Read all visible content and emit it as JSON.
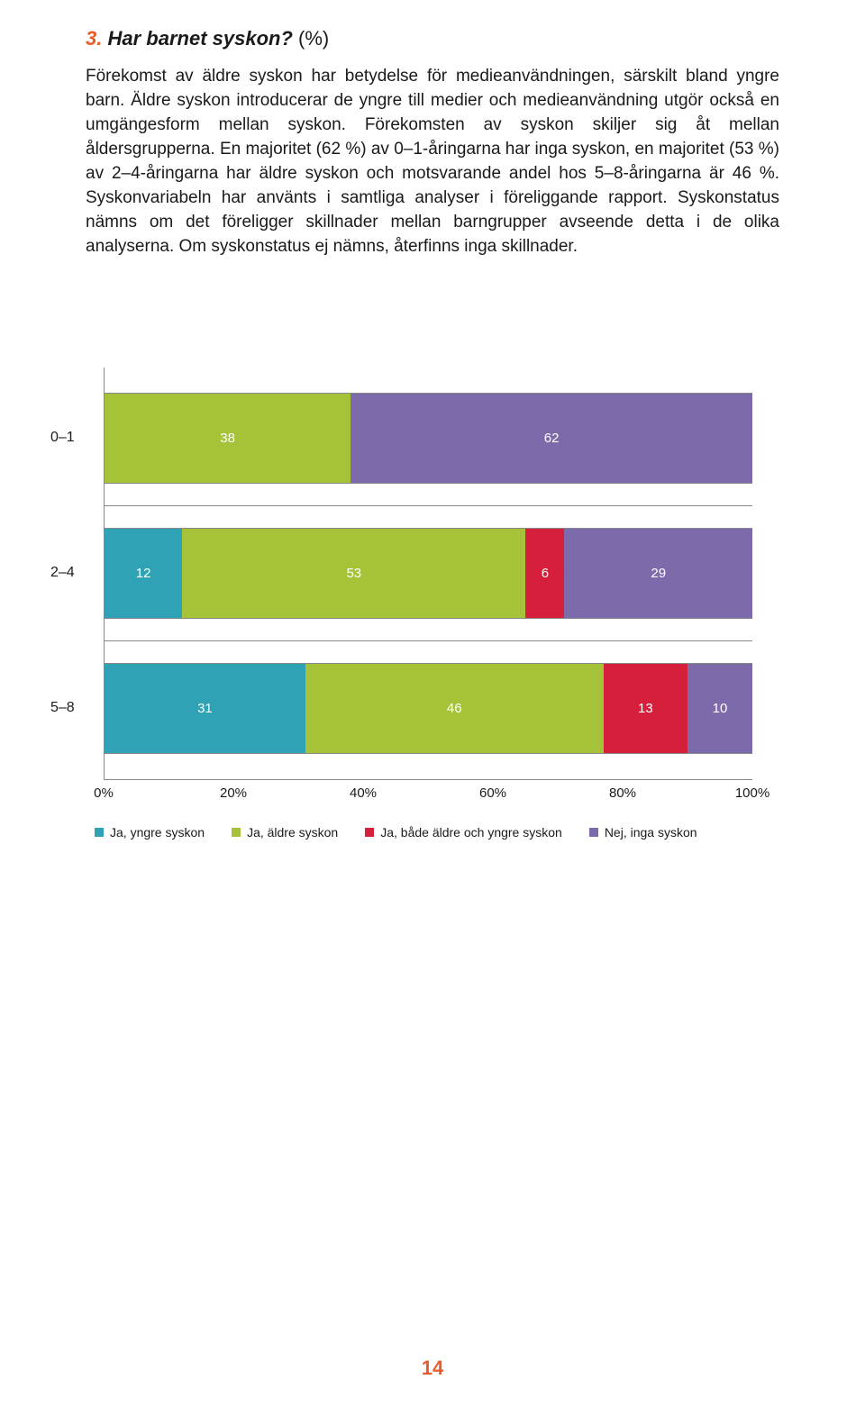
{
  "heading": {
    "number": "3.",
    "title": "Har barnet syskon?",
    "pct": "(%)"
  },
  "paragraph": "Förekomst av äldre syskon har betydelse för medieanvändningen, särskilt bland yngre barn. Äldre syskon introducerar de yngre till medier och medieanvändning utgör också en umgängesform mellan syskon. Förekomsten av syskon skiljer sig åt mellan åldersgrupperna. En majoritet (62 %) av 0–1-åringarna har inga syskon, en majoritet (53 %) av 2–4-åringarna har äldre syskon och motsvarande andel hos 5–8-åringarna är 46 %. Syskonvariabeln har använts i samtliga analyser i föreliggande rapport. Syskonstatus nämns om det föreligger skillnader mellan barngrupper avseende detta i de olika analyserna. Om syskonstatus ej nämns, återfinns inga skillnader.",
  "chart": {
    "type": "stacked-bar-horizontal",
    "categories": [
      "0–1",
      "2–4",
      "5–8"
    ],
    "series": [
      {
        "name": "Ja, yngre syskon",
        "color": "#2fa3b5"
      },
      {
        "name": "Ja, äldre syskon",
        "color": "#a5c238"
      },
      {
        "name": "Ja, både äldre och yngre syskon",
        "color": "#d61f3a"
      },
      {
        "name": "Nej, inga syskon",
        "color": "#7d6aab"
      }
    ],
    "rows": [
      {
        "label": "0–1",
        "values": [
          0,
          38,
          0,
          62
        ],
        "display": [
          "",
          "38",
          "",
          "62"
        ]
      },
      {
        "label": "2–4",
        "values": [
          12,
          53,
          6,
          29
        ],
        "display": [
          "12",
          "53",
          "6",
          "29"
        ]
      },
      {
        "label": "5–8",
        "values": [
          31,
          46,
          13,
          10
        ],
        "display": [
          "31",
          "46",
          "13",
          "10"
        ]
      }
    ],
    "x_ticks": [
      "0%",
      "20%",
      "40%",
      "60%",
      "80%",
      "100%"
    ],
    "x_tick_positions": [
      0,
      20,
      40,
      60,
      80,
      100
    ],
    "label_fontsize": 15,
    "value_color": "#ffffff",
    "background_color": "#ffffff",
    "axis_color": "#888888"
  },
  "page_number": "14"
}
